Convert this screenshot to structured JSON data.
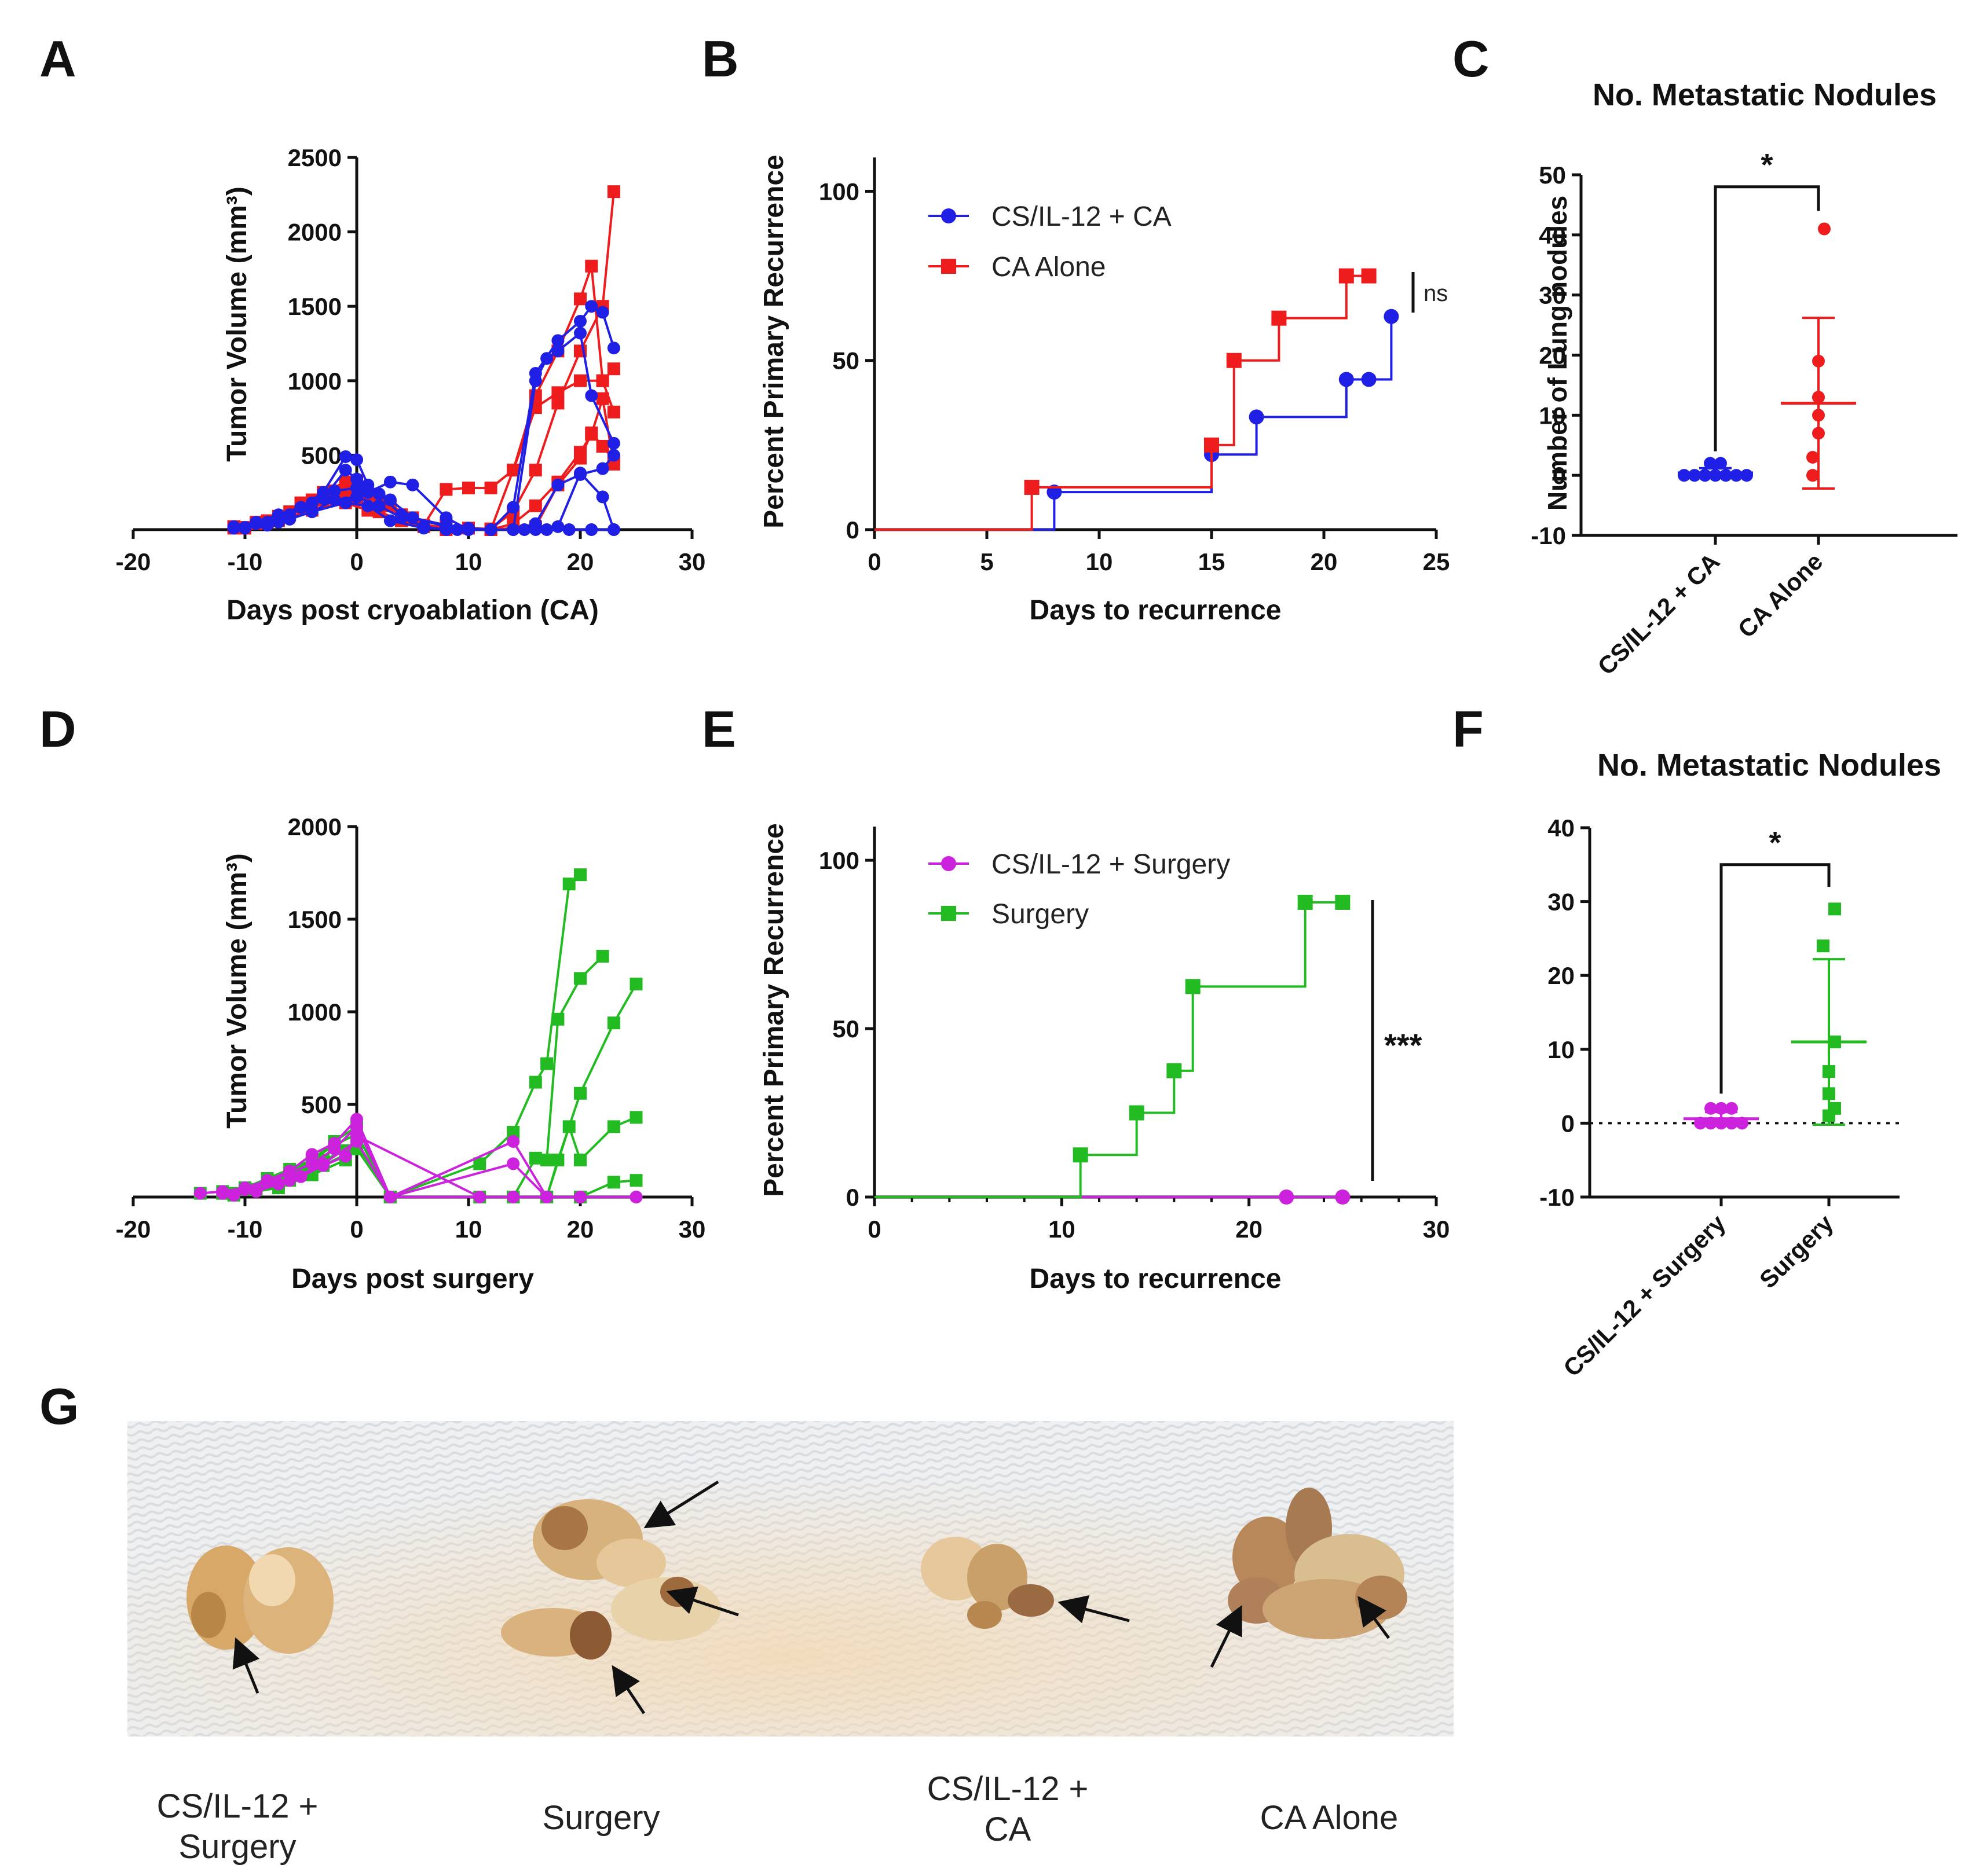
{
  "colors": {
    "blue": "#1f1fe6",
    "red": "#ee1c1c",
    "green": "#22bb22",
    "magenta": "#cc22dd",
    "black": "#111111"
  },
  "chart_data": [
    {
      "panel": "A",
      "type": "line",
      "title": "",
      "xlabel": "Days post cryoablation (CA)",
      "ylabel": "Tumor  Volume (mm³)",
      "xlim": [
        -20,
        30
      ],
      "ylim": [
        0,
        2500
      ],
      "xticks": [
        "-20",
        "-10",
        "0",
        "10",
        "20",
        "30"
      ],
      "yticks": [
        "500",
        "1000",
        "1500",
        "2000",
        "2500"
      ],
      "series": [
        {
          "name": "CA Alone",
          "color": "red",
          "marker": "square",
          "x": [
            -11,
            -9,
            -7,
            -5,
            -3,
            -1,
            0,
            1,
            3,
            5,
            8,
            10,
            12,
            14,
            16,
            18,
            20,
            22,
            23
          ],
          "y": [
            20,
            40,
            80,
            150,
            200,
            260,
            300,
            240,
            160,
            80,
            30,
            10,
            5,
            120,
            400,
            850,
            1200,
            1500,
            2270
          ]
        },
        {
          "name": "CA Alone",
          "color": "red",
          "marker": "square",
          "x": [
            -11,
            -9,
            -7,
            -5,
            -3,
            -1,
            0,
            2,
            4,
            8,
            10,
            12,
            14,
            16,
            18,
            20,
            21,
            22,
            23
          ],
          "y": [
            20,
            50,
            90,
            180,
            250,
            320,
            330,
            200,
            90,
            30,
            10,
            0,
            400,
            900,
            1200,
            1550,
            1770,
            1000,
            1080
          ]
        },
        {
          "name": "CA Alone",
          "color": "red",
          "marker": "square",
          "x": [
            -10,
            -8,
            -6,
            -4,
            -2,
            0,
            2,
            4,
            6,
            8,
            10,
            12,
            14,
            16,
            18,
            20,
            22,
            23
          ],
          "y": [
            15,
            60,
            120,
            200,
            260,
            250,
            180,
            100,
            30,
            270,
            280,
            280,
            400,
            820,
            920,
            1000,
            1000,
            790
          ]
        },
        {
          "name": "CA Alone",
          "color": "red",
          "marker": "square",
          "x": [
            -10,
            -8,
            -6,
            -4,
            -2,
            0,
            2,
            4,
            6,
            8,
            12,
            14,
            16,
            18,
            20,
            21,
            22,
            23
          ],
          "y": [
            10,
            50,
            100,
            160,
            220,
            200,
            120,
            60,
            20,
            0,
            0,
            40,
            160,
            320,
            520,
            640,
            880,
            440
          ]
        },
        {
          "name": "CA Alone",
          "color": "red",
          "marker": "square",
          "x": [
            -11,
            -7,
            -4,
            -1,
            1,
            4,
            8,
            12,
            16,
            18,
            20,
            21,
            22,
            23
          ],
          "y": [
            10,
            60,
            130,
            180,
            130,
            60,
            10,
            0,
            20,
            300,
            480,
            650,
            560,
            470
          ]
        },
        {
          "name": "CS/IL-12 + CA",
          "color": "blue",
          "marker": "circle",
          "x": [
            -11,
            -9,
            -7,
            -5,
            -3,
            -1,
            0,
            1,
            3,
            5,
            8,
            10,
            12,
            14,
            16,
            18,
            20,
            21,
            22,
            23
          ],
          "y": [
            20,
            50,
            100,
            150,
            250,
            490,
            470,
            300,
            200,
            80,
            30,
            10,
            0,
            150,
            1050,
            1270,
            1400,
            1500,
            1460,
            1220
          ]
        },
        {
          "name": "CS/IL-12 + CA",
          "color": "blue",
          "marker": "circle",
          "x": [
            -11,
            -9,
            -7,
            -5,
            -3,
            -1,
            0,
            2,
            4,
            8,
            10,
            14,
            16,
            17,
            18,
            20,
            21,
            23
          ],
          "y": [
            10,
            40,
            80,
            150,
            210,
            400,
            340,
            240,
            100,
            20,
            0,
            0,
            1000,
            1150,
            1200,
            1320,
            900,
            580
          ]
        },
        {
          "name": "CS/IL-12 + CA",
          "color": "blue",
          "marker": "circle",
          "x": [
            -10,
            -8,
            -6,
            -4,
            -2,
            0,
            1,
            3,
            5,
            8,
            10,
            12,
            14,
            16,
            18,
            20,
            22,
            23
          ],
          "y": [
            15,
            50,
            100,
            180,
            260,
            280,
            250,
            320,
            300,
            80,
            0,
            0,
            0,
            40,
            300,
            370,
            410,
            500
          ]
        },
        {
          "name": "CS/IL-12 + CA",
          "color": "blue",
          "marker": "circle",
          "x": [
            -10,
            -8,
            -6,
            -4,
            -2,
            0,
            2,
            4,
            6,
            8,
            10,
            14,
            16,
            18,
            20,
            22,
            23
          ],
          "y": [
            10,
            30,
            70,
            120,
            200,
            220,
            160,
            80,
            20,
            0,
            0,
            0,
            0,
            20,
            380,
            220,
            0
          ]
        },
        {
          "name": "CS/IL-12 + CA",
          "color": "blue",
          "marker": "circle",
          "x": [
            -11,
            -7,
            -4,
            -1,
            1,
            3,
            6,
            9,
            12,
            15,
            17,
            19,
            21,
            23
          ],
          "y": [
            10,
            50,
            120,
            180,
            160,
            60,
            10,
            0,
            0,
            0,
            0,
            0,
            0,
            0
          ]
        }
      ]
    },
    {
      "panel": "B",
      "type": "line",
      "subtype": "step",
      "title": "",
      "xlabel": "Days to recurrence",
      "ylabel": "Percent Primary Recurrence",
      "xlim": [
        0,
        25
      ],
      "ylim": [
        0,
        110
      ],
      "xticks": [
        "0",
        "5",
        "10",
        "15",
        "20",
        "25"
      ],
      "yticks": [
        "0",
        "50",
        "100"
      ],
      "series": [
        {
          "name": "CS/IL-12 + CA",
          "color": "blue",
          "marker": "circle",
          "x": [
            0,
            8,
            15,
            17,
            21,
            22,
            23
          ],
          "y": [
            0,
            11.1,
            22.2,
            33.3,
            44.4,
            44.4,
            63
          ],
          "marked": [
            8,
            15,
            17,
            21,
            22,
            23
          ]
        },
        {
          "name": "CA Alone",
          "color": "red",
          "marker": "square",
          "x": [
            0,
            7,
            15,
            16,
            18,
            21,
            22
          ],
          "y": [
            0,
            12.5,
            25,
            50,
            62.5,
            75,
            75
          ],
          "marked": [
            7,
            15,
            16,
            18,
            21,
            22
          ]
        }
      ],
      "annotations": [
        "ns"
      ]
    },
    {
      "panel": "C",
      "type": "scatter",
      "title": "No. Metastatic Nodules",
      "xlabel": "",
      "ylabel": "Number of Lung nodules",
      "ylim": [
        -10,
        50
      ],
      "yticks": [
        "-10",
        "0",
        "10",
        "20",
        "30",
        "40",
        "50"
      ],
      "categories": [
        "CS/IL-12 + CA",
        "CA Alone"
      ],
      "groups": [
        {
          "name": "CS/IL-12 + CA",
          "color": "blue",
          "values": [
            0,
            0,
            0,
            0,
            0,
            0,
            0,
            2,
            2
          ],
          "mean": 0.4,
          "sd": 0.8
        },
        {
          "name": "CA Alone",
          "color": "red",
          "values": [
            41,
            19,
            13,
            10,
            7,
            3,
            0
          ],
          "mean": 12,
          "sd": 14.2
        }
      ],
      "annotations": [
        "*"
      ]
    },
    {
      "panel": "D",
      "type": "line",
      "title": "",
      "xlabel": "Days post surgery",
      "ylabel": "Tumor  Volume (mm³)",
      "xlim": [
        -20,
        30
      ],
      "ylim": [
        0,
        2000
      ],
      "xticks": [
        "-20",
        "-10",
        "0",
        "10",
        "20",
        "30"
      ],
      "yticks": [
        "500",
        "1000",
        "1500",
        "2000"
      ],
      "series": [
        {
          "name": "Surgery",
          "color": "green",
          "marker": "square",
          "x": [
            -14,
            -12,
            -10,
            -8,
            -6,
            -4,
            -2,
            0,
            3,
            11,
            14,
            16,
            17,
            19,
            20
          ],
          "y": [
            20,
            30,
            50,
            100,
            150,
            200,
            300,
            380,
            0,
            180,
            350,
            620,
            720,
            1690,
            1740
          ]
        },
        {
          "name": "Surgery",
          "color": "green",
          "marker": "square",
          "x": [
            -12,
            -10,
            -8,
            -6,
            -4,
            -2,
            0,
            3,
            11,
            14,
            16,
            17,
            18,
            20,
            22
          ],
          "y": [
            20,
            40,
            80,
            130,
            200,
            280,
            340,
            0,
            0,
            0,
            210,
            200,
            960,
            1180,
            1300
          ]
        },
        {
          "name": "Surgery",
          "color": "green",
          "marker": "square",
          "x": [
            -11,
            -9,
            -7,
            -5,
            -3,
            -1,
            0,
            3,
            14,
            17,
            18,
            20,
            23,
            25
          ],
          "y": [
            20,
            40,
            80,
            140,
            200,
            250,
            300,
            0,
            0,
            0,
            200,
            560,
            940,
            1150
          ]
        },
        {
          "name": "Surgery",
          "color": "green",
          "marker": "square",
          "x": [
            -12,
            -9,
            -6,
            -3,
            0,
            3,
            14,
            17,
            19,
            20,
            23,
            25
          ],
          "y": [
            20,
            40,
            90,
            170,
            260,
            0,
            0,
            0,
            380,
            200,
            380,
            430
          ]
        },
        {
          "name": "Surgery",
          "color": "green",
          "marker": "square",
          "x": [
            -11,
            -7,
            -4,
            -1,
            0,
            3,
            14,
            17,
            20,
            23,
            25
          ],
          "y": [
            10,
            50,
            120,
            200,
            280,
            0,
            0,
            0,
            0,
            80,
            90
          ]
        },
        {
          "name": "CS/IL-12 + Surgery",
          "color": "magenta",
          "marker": "circle",
          "x": [
            -14,
            -12,
            -10,
            -8,
            -6,
            -4,
            -2,
            0,
            3,
            14,
            17,
            20,
            25
          ],
          "y": [
            20,
            30,
            50,
            90,
            140,
            230,
            290,
            420,
            0,
            300,
            0,
            0,
            0
          ]
        },
        {
          "name": "CS/IL-12 + Surgery",
          "color": "magenta",
          "marker": "circle",
          "x": [
            -12,
            -10,
            -8,
            -6,
            -4,
            -2,
            0,
            3,
            14,
            17,
            20,
            25
          ],
          "y": [
            20,
            40,
            80,
            130,
            180,
            260,
            380,
            0,
            180,
            0,
            0,
            0
          ]
        },
        {
          "name": "CS/IL-12 + Surgery",
          "color": "magenta",
          "marker": "circle",
          "x": [
            -11,
            -9,
            -7,
            -5,
            -3,
            -1,
            0,
            11,
            14,
            17,
            20,
            25
          ],
          "y": [
            10,
            30,
            70,
            110,
            170,
            220,
            330,
            0,
            0,
            0,
            0,
            0
          ]
        },
        {
          "name": "CS/IL-12 + Surgery",
          "color": "magenta",
          "marker": "circle",
          "x": [
            -12,
            -9,
            -6,
            -3,
            0,
            3,
            14,
            17,
            20,
            25
          ],
          "y": [
            20,
            40,
            90,
            180,
            300,
            0,
            0,
            0,
            0,
            0
          ]
        }
      ]
    },
    {
      "panel": "E",
      "type": "line",
      "subtype": "step",
      "title": "",
      "xlabel": "Days to recurrence",
      "ylabel": "Percent Primary Recurrence",
      "xlim": [
        0,
        30
      ],
      "ylim": [
        0,
        110
      ],
      "xticks": [
        "0",
        "10",
        "20",
        "30"
      ],
      "yticks": [
        "0",
        "50",
        "100"
      ],
      "series": [
        {
          "name": "CS/IL-12 + Surgery",
          "color": "magenta",
          "marker": "circle",
          "x": [
            0,
            22,
            25
          ],
          "y": [
            0,
            0,
            0
          ],
          "marked": [
            22,
            25
          ]
        },
        {
          "name": "Surgery",
          "color": "green",
          "marker": "square",
          "x": [
            0,
            11,
            14,
            16,
            17,
            23,
            25
          ],
          "y": [
            0,
            12.5,
            25,
            37.5,
            62.5,
            87.5,
            87.5
          ],
          "marked": [
            11,
            14,
            16,
            17,
            23,
            25
          ]
        }
      ],
      "annotations": [
        "***"
      ]
    },
    {
      "panel": "F",
      "type": "scatter",
      "title": "No. Metastatic Nodules",
      "xlabel": "",
      "ylabel": "",
      "ylim": [
        -10,
        40
      ],
      "yticks": [
        "-10",
        "0",
        "10",
        "20",
        "30",
        "40"
      ],
      "categories": [
        "CS/IL-12 + Surgery",
        "Surgery"
      ],
      "groups": [
        {
          "name": "CS/IL-12 + Surgery",
          "color": "magenta",
          "values": [
            0,
            0,
            0,
            0,
            0,
            2,
            2,
            2
          ],
          "mean": 0.6,
          "sd": 0.9
        },
        {
          "name": "Surgery",
          "color": "green",
          "values": [
            29,
            24,
            11,
            7,
            4,
            2,
            1
          ],
          "mean": 11,
          "sd": 11.2
        }
      ],
      "annotations": [
        "*"
      ]
    }
  ],
  "panel_letters": [
    "A",
    "B",
    "C",
    "D",
    "E",
    "F",
    "G"
  ],
  "photo_captions": {
    "c1_line1": "CS/IL-12 +",
    "c1_line2": "Surgery",
    "c2": "Surgery",
    "c3_line1": "CS/IL-12 +",
    "c3_line2": "CA",
    "c4": "CA Alone"
  }
}
